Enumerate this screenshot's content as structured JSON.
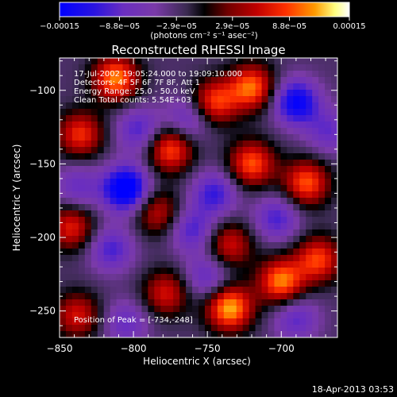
{
  "chart_data": {
    "type": "heatmap",
    "title": "Reconstructed RHESSI Image",
    "xlabel": "Heliocentric X (arcsec)",
    "ylabel": "Heliocentric Y (arcsec)",
    "xlim": [
      -850,
      -662
    ],
    "ylim": [
      -268,
      -78
    ],
    "x_ticks": [
      -850,
      -800,
      -750,
      -700
    ],
    "x_tick_labels": [
      "−850",
      "−800",
      "−750",
      "−700"
    ],
    "y_ticks": [
      -100,
      -150,
      -200,
      -250
    ],
    "y_tick_labels": [
      "−100",
      "−150",
      "−200",
      "−250"
    ],
    "colorbar": {
      "range": [
        -0.00015,
        0.00015
      ],
      "ticks": [
        -0.00015,
        -8.8e-05,
        -2.9e-05,
        2.9e-05,
        8.8e-05,
        0.00015
      ],
      "tick_labels": [
        "−0.00015",
        "−8.8e−05",
        "−2.9e−05",
        "2.9e−05",
        "8.8e−05",
        "0.00015"
      ],
      "units": "(photons cm⁻² s⁻¹ asec⁻²)",
      "colors": [
        "#0000ff",
        "#5a1fd0",
        "#7a3aa8",
        "#4a3a6a",
        "#000000",
        "#700000",
        "#c00000",
        "#ff3000",
        "#ff9a00",
        "#ffff80",
        "#ffffff"
      ]
    },
    "annotations": [
      "17-Jul-2002 19:05:24.000 to 19:09:10.000",
      "Detectors: 4F 5F 6F 7F 8F, Att 1",
      "Energy Range: 25.0 - 50.0 keV",
      "Clean    Total counts: 5.54E+03"
    ],
    "peak_label": "Position of Peak = [-734,-248]",
    "peak_position": [
      -734,
      -248
    ],
    "timestamp": "18-Apr-2013 03:53",
    "blobs": [
      {
        "x": -812,
        "y": -92,
        "v": 0.9
      },
      {
        "x": -836,
        "y": -130,
        "v": 0.7
      },
      {
        "x": -775,
        "y": -140,
        "v": 0.8
      },
      {
        "x": -745,
        "y": -108,
        "v": 0.75
      },
      {
        "x": -720,
        "y": -98,
        "v": 0.85
      },
      {
        "x": -720,
        "y": -150,
        "v": 0.8
      },
      {
        "x": -735,
        "y": -205,
        "v": 0.6
      },
      {
        "x": -784,
        "y": -183,
        "v": 0.55
      },
      {
        "x": -842,
        "y": -193,
        "v": 0.65
      },
      {
        "x": -683,
        "y": -163,
        "v": 0.8
      },
      {
        "x": -675,
        "y": -215,
        "v": 0.75
      },
      {
        "x": -700,
        "y": -230,
        "v": 0.9
      },
      {
        "x": -735,
        "y": -248,
        "v": 1.0
      },
      {
        "x": -778,
        "y": -238,
        "v": 0.6
      },
      {
        "x": -838,
        "y": -253,
        "v": 0.6
      },
      {
        "x": -796,
        "y": -127,
        "v": -0.5
      },
      {
        "x": -805,
        "y": -167,
        "v": -1.0
      },
      {
        "x": -690,
        "y": -108,
        "v": -0.8
      },
      {
        "x": -763,
        "y": -120,
        "v": -0.45
      },
      {
        "x": -745,
        "y": -170,
        "v": -0.55
      },
      {
        "x": -760,
        "y": -195,
        "v": -0.5
      },
      {
        "x": -838,
        "y": -166,
        "v": -0.4
      },
      {
        "x": -703,
        "y": -187,
        "v": -0.5
      },
      {
        "x": -815,
        "y": -208,
        "v": -0.5
      },
      {
        "x": -750,
        "y": -227,
        "v": -0.45
      },
      {
        "x": -690,
        "y": -255,
        "v": -0.45
      },
      {
        "x": -805,
        "y": -258,
        "v": -0.4
      },
      {
        "x": -668,
        "y": -128,
        "v": -0.4
      }
    ]
  }
}
